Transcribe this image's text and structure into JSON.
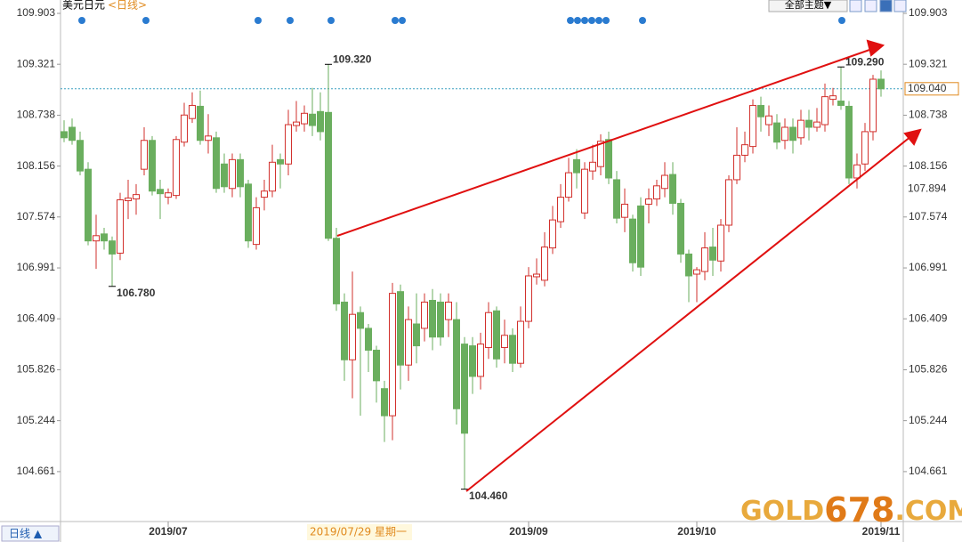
{
  "chart_data": {
    "type": "candlestick",
    "title": "美元日元",
    "subtitle": "<日线>",
    "period_button": "日线 ▲",
    "theme_button": "全部主题▼",
    "cursor_label": "2019/07/29  星期一",
    "watermark_a": "GOLD",
    "watermark_b": "678",
    "watermark_c": ".COM",
    "up_color": "#d2302c",
    "down_color": "#6aae5e",
    "ylim": [
      104.1,
      110.056
    ],
    "yticks": [
      109.903,
      109.321,
      108.738,
      108.156,
      107.574,
      106.991,
      106.409,
      105.826,
      105.244,
      104.661
    ],
    "last_price": {
      "value": 109.04,
      "label": "109.040"
    },
    "marker_price": 107.894,
    "annotations": [
      {
        "label": "109.320",
        "value": 109.32,
        "color": "#d2302c"
      },
      {
        "label": "106.780",
        "value": 106.78,
        "color": "#5a9e4e"
      },
      {
        "label": "104.460",
        "value": 104.46,
        "color": "#5a9e4e"
      },
      {
        "label": "109.290",
        "value": 109.29,
        "color": "#d2302c"
      }
    ],
    "categories": [
      null,
      null,
      null,
      null,
      null,
      null,
      null,
      null,
      null,
      null,
      null,
      null,
      null,
      "2019/07",
      null,
      null,
      null,
      null,
      null,
      null,
      null,
      null,
      null,
      null,
      null,
      null,
      null,
      null,
      null,
      null,
      null,
      null,
      null,
      null,
      null,
      null,
      null,
      null,
      null,
      null,
      null,
      null,
      null,
      null,
      null,
      null,
      null,
      null,
      null,
      null,
      null,
      null,
      null,
      null,
      null,
      null,
      null,
      null,
      "2019/09",
      null,
      null,
      null,
      null,
      null,
      null,
      null,
      null,
      null,
      null,
      null,
      null,
      null,
      null,
      null,
      null,
      null,
      null,
      null,
      null,
      "2019/10",
      null,
      null,
      null,
      null,
      null,
      null,
      null,
      null,
      null,
      null,
      null,
      null,
      null,
      null,
      null,
      null,
      null,
      null,
      null,
      null,
      null,
      null,
      "2019/11"
    ],
    "open": [
      108.55,
      108.6,
      108.45,
      108.12,
      107.3,
      107.38,
      107.3,
      107.16,
      107.76,
      107.78,
      108.12,
      108.45,
      107.89,
      107.8,
      107.82,
      108.43,
      108.7,
      108.84,
      108.45,
      108.48,
      108.18,
      107.9,
      108.23,
      107.95,
      107.26,
      107.8,
      107.87,
      108.23,
      108.18,
      108.62,
      108.64,
      108.75,
      108.78,
      108.77,
      107.33,
      106.6,
      105.94,
      106.48,
      106.3,
      106.05,
      105.61,
      105.3,
      106.72,
      105.88,
      106.35,
      106.3,
      106.62,
      106.6,
      106.4,
      106.4,
      106.12,
      106.1,
      105.75,
      106.08,
      106.5,
      106.08,
      106.22,
      105.9,
      106.38,
      106.89,
      106.85,
      107.22,
      107.52,
      107.8,
      108.23,
      107.62,
      108.1,
      108.15,
      108.46,
      108.0,
      107.57,
      107.55,
      107.7,
      107.72,
      107.78,
      107.9,
      108.06,
      107.73,
      107.15,
      106.92,
      106.95,
      107.23,
      107.07,
      107.48,
      108.0,
      108.28,
      108.38,
      108.85,
      108.63,
      108.65,
      108.45,
      108.6,
      108.48,
      108.68,
      108.6,
      108.63,
      108.92,
      108.9,
      108.84,
      108.02,
      108.18,
      108.55,
      109.15
    ],
    "high": [
      108.68,
      108.7,
      108.55,
      108.2,
      107.6,
      107.45,
      107.35,
      107.85,
      108.0,
      107.95,
      108.6,
      108.5,
      108.0,
      107.9,
      108.5,
      108.88,
      109.0,
      109.02,
      108.75,
      108.55,
      108.3,
      108.3,
      108.3,
      108.0,
      107.8,
      108.0,
      108.4,
      108.3,
      108.8,
      108.9,
      108.85,
      109.05,
      109.0,
      109.32,
      107.45,
      106.7,
      106.95,
      106.55,
      106.35,
      106.1,
      105.7,
      106.82,
      106.8,
      106.55,
      106.7,
      106.7,
      106.75,
      106.7,
      106.7,
      106.6,
      106.2,
      106.2,
      106.25,
      106.6,
      106.55,
      106.4,
      106.3,
      106.55,
      107.0,
      107.1,
      107.4,
      107.7,
      107.95,
      108.25,
      108.35,
      108.2,
      108.4,
      108.52,
      108.55,
      108.1,
      107.9,
      107.6,
      107.8,
      107.9,
      108.0,
      108.2,
      108.2,
      107.78,
      107.2,
      107.0,
      107.4,
      107.45,
      107.55,
      108.05,
      108.6,
      108.55,
      108.92,
      108.95,
      108.85,
      108.75,
      108.7,
      108.7,
      108.8,
      108.8,
      108.82,
      109.1,
      109.05,
      109.29,
      108.9,
      108.3,
      108.65,
      109.2,
      109.25
    ],
    "low": [
      108.43,
      108.4,
      108.05,
      107.25,
      106.98,
      107.2,
      106.78,
      107.08,
      107.55,
      107.6,
      108.05,
      107.82,
      107.55,
      107.72,
      107.78,
      108.38,
      108.65,
      108.4,
      108.3,
      107.85,
      107.85,
      107.8,
      107.8,
      107.22,
      107.2,
      107.65,
      107.8,
      107.9,
      108.05,
      108.55,
      108.55,
      108.5,
      108.45,
      107.3,
      106.5,
      105.7,
      105.5,
      105.3,
      105.8,
      105.45,
      105.0,
      105.02,
      105.6,
      105.7,
      105.9,
      106.15,
      106.05,
      106.1,
      106.2,
      105.2,
      104.46,
      105.55,
      105.6,
      105.95,
      105.85,
      105.9,
      105.8,
      105.85,
      106.3,
      106.8,
      106.78,
      107.15,
      107.45,
      107.75,
      107.9,
      107.55,
      108.0,
      108.05,
      107.95,
      107.5,
      107.4,
      106.95,
      106.9,
      107.5,
      107.7,
      107.8,
      107.6,
      107.05,
      106.6,
      106.6,
      106.85,
      106.9,
      106.95,
      107.4,
      107.95,
      108.2,
      108.3,
      108.55,
      108.5,
      108.35,
      108.35,
      108.3,
      108.4,
      108.45,
      108.55,
      108.55,
      108.85,
      108.8,
      107.95,
      107.9,
      108.1,
      108.45,
      108.95
    ],
    "close": [
      108.48,
      108.45,
      108.1,
      107.3,
      107.36,
      107.3,
      107.15,
      107.77,
      107.79,
      107.83,
      108.45,
      107.87,
      107.84,
      107.85,
      108.46,
      108.74,
      108.85,
      108.45,
      108.5,
      107.9,
      107.92,
      108.23,
      107.92,
      107.3,
      107.68,
      107.87,
      108.2,
      108.18,
      108.63,
      108.66,
      108.76,
      108.62,
      108.55,
      107.33,
      106.58,
      105.94,
      106.46,
      106.3,
      106.05,
      105.7,
      105.3,
      106.7,
      105.88,
      106.4,
      106.1,
      106.6,
      106.2,
      106.2,
      106.6,
      105.38,
      105.1,
      105.75,
      106.12,
      106.48,
      105.95,
      106.22,
      105.9,
      106.38,
      106.9,
      106.92,
      107.23,
      107.54,
      107.8,
      108.08,
      108.08,
      108.12,
      108.2,
      108.44,
      108.02,
      107.56,
      107.72,
      107.05,
      107.0,
      107.78,
      107.93,
      108.05,
      107.73,
      107.15,
      106.9,
      106.97,
      107.22,
      107.08,
      107.48,
      108.0,
      108.28,
      108.4,
      108.85,
      108.72,
      108.73,
      108.43,
      108.6,
      108.45,
      108.68,
      108.6,
      108.66,
      108.95,
      108.96,
      108.85,
      108.02,
      108.17,
      108.55,
      109.15,
      109.04
    ]
  }
}
